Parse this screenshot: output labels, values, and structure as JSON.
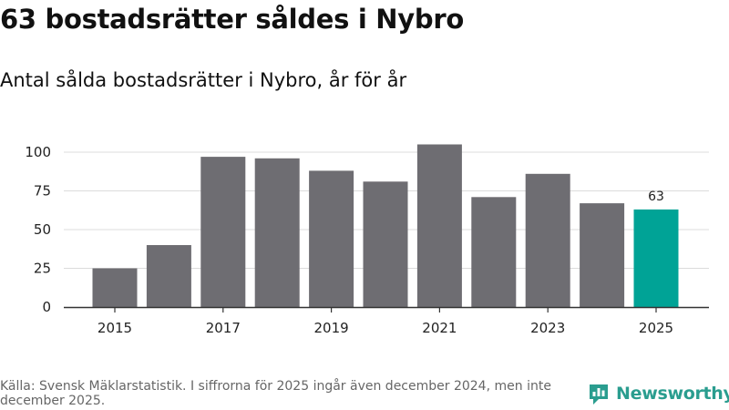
{
  "header": {
    "title": "63 bostadsrätter såldes i Nybro",
    "subtitle": "Antal sålda bostadsrätter i Nybro, år för år"
  },
  "chart_data": {
    "type": "bar",
    "title": "",
    "xlabel": "",
    "ylabel": "",
    "categories": [
      "2015",
      "2016",
      "2017",
      "2018",
      "2019",
      "2020",
      "2021",
      "2022",
      "2023",
      "2024",
      "2025"
    ],
    "values": [
      25,
      40,
      97,
      96,
      88,
      81,
      105,
      71,
      86,
      67,
      63
    ],
    "x_tick_labels": [
      "2015",
      "2017",
      "2019",
      "2021",
      "2023",
      "2025"
    ],
    "y_ticks": [
      0,
      25,
      50,
      75,
      100
    ],
    "ylim": [
      0,
      110
    ],
    "grid": true,
    "highlight_category": "2025",
    "data_labels": [
      {
        "category": "2025",
        "text": "63"
      }
    ],
    "colors": {
      "bar": "#6e6d72",
      "highlight": "#00a396",
      "grid": "#dcdcdc",
      "axis": "#333333"
    }
  },
  "footer": {
    "source": "Källa: Svensk Mäklarstatistik. I siffrorna för 2025 ingår även december 2024, men inte december 2025."
  },
  "brand": {
    "name": "Newsworthy",
    "icon": "bar-chart-badge-icon",
    "color": "#2a9d8f"
  }
}
